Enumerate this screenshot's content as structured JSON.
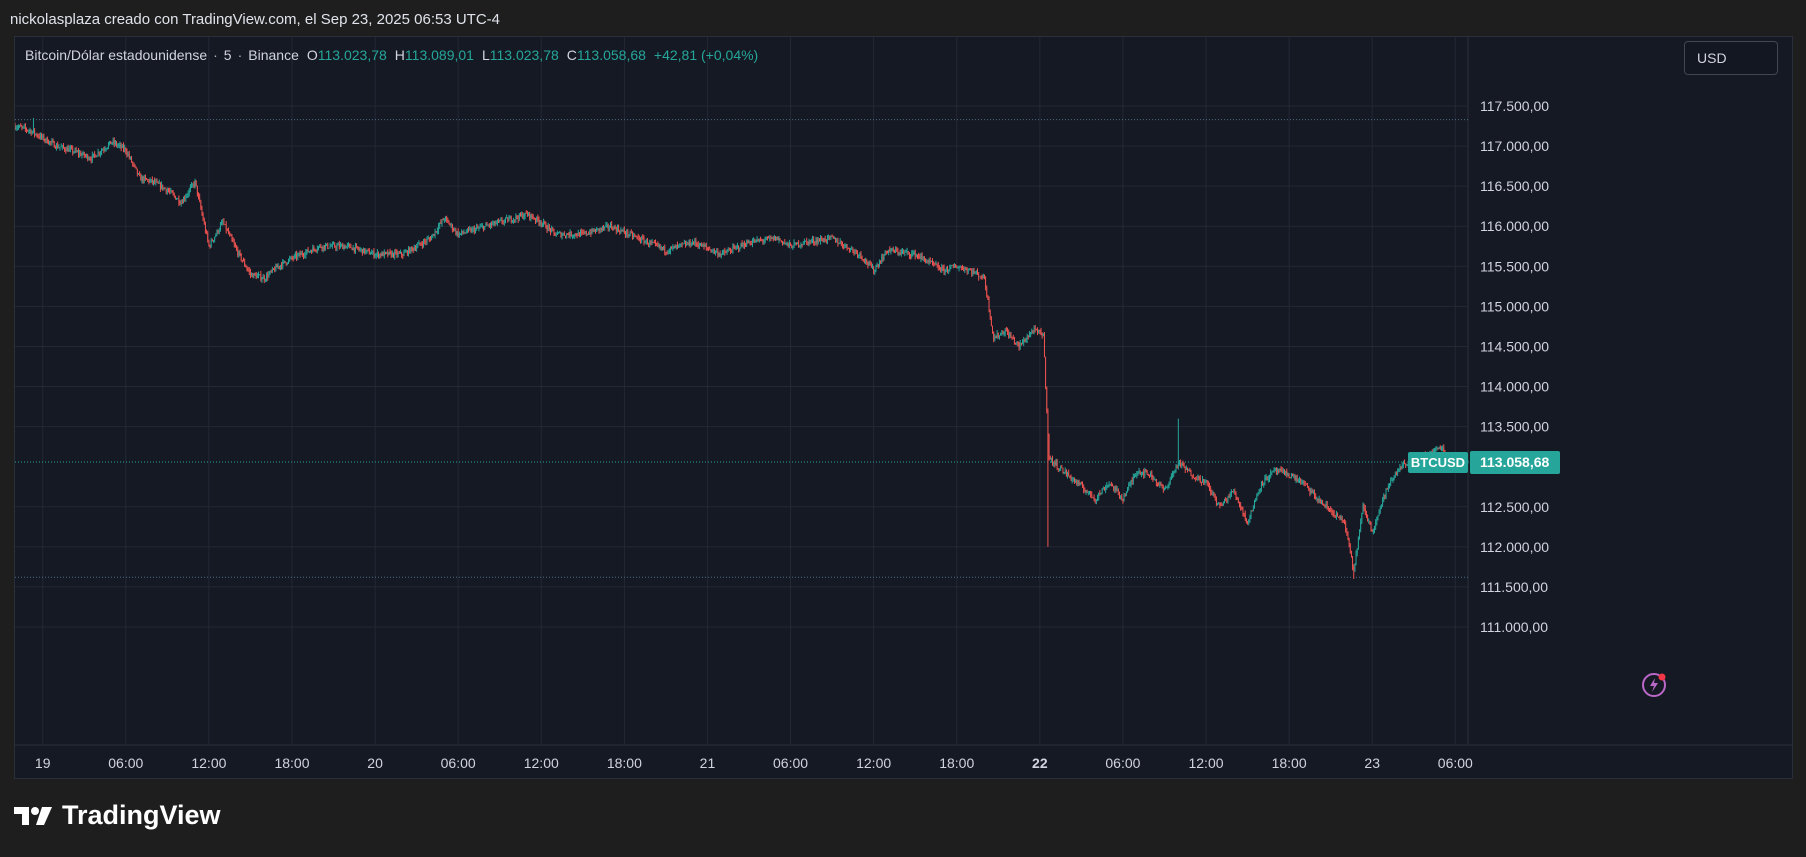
{
  "caption": "nickolasplaza creado con TradingView.com, el Sep 23, 2025 06:53 UTC-4",
  "legend": {
    "symbol": "Bitcoin/Dólar estadounidense",
    "interval": "5",
    "exchange": "Binance",
    "open_label": "O",
    "open": "113.023,78",
    "high_label": "H",
    "high": "113.089,01",
    "low_label": "L",
    "low": "113.023,78",
    "close_label": "C",
    "close": "113.058,68",
    "change": "+42,81 (+0,04%)"
  },
  "currency": "USD",
  "footer": {
    "brand": "TradingView"
  },
  "colors": {
    "up": "#26a69a",
    "down": "#ef5350",
    "bg": "#151924",
    "grid": "#232835"
  },
  "icons": [
    "tradingview-logo-icon",
    "lightning-alert-icon"
  ],
  "chart_data": {
    "type": "candlestick",
    "symbol": "BTCUSD",
    "interval_minutes": 5,
    "x_range": [
      "2025-09-18 22:00",
      "2025-09-23 06:55"
    ],
    "ylim": [
      110700,
      118300
    ],
    "y_ticks": [
      {
        "value": 117500,
        "label": "117.500,00"
      },
      {
        "value": 117000,
        "label": "117.000,00"
      },
      {
        "value": 116500,
        "label": "116.500,00"
      },
      {
        "value": 116000,
        "label": "116.000,00"
      },
      {
        "value": 115500,
        "label": "115.500,00"
      },
      {
        "value": 115000,
        "label": "115.000,00"
      },
      {
        "value": 114500,
        "label": "114.500,00"
      },
      {
        "value": 114000,
        "label": "114.000,00"
      },
      {
        "value": 113500,
        "label": "113.500,00"
      },
      {
        "value": 112500,
        "label": "112.500,00"
      },
      {
        "value": 112000,
        "label": "112.000,00"
      },
      {
        "value": 111500,
        "label": "111.500,00"
      },
      {
        "value": 111000,
        "label": "111.000,00"
      }
    ],
    "x_ticks": [
      {
        "time": "2025-09-19 00:00",
        "label": "19",
        "bold": false
      },
      {
        "time": "2025-09-19 06:00",
        "label": "06:00",
        "bold": false
      },
      {
        "time": "2025-09-19 12:00",
        "label": "12:00",
        "bold": false
      },
      {
        "time": "2025-09-19 18:00",
        "label": "18:00",
        "bold": false
      },
      {
        "time": "2025-09-20 00:00",
        "label": "20",
        "bold": false
      },
      {
        "time": "2025-09-20 06:00",
        "label": "06:00",
        "bold": false
      },
      {
        "time": "2025-09-20 12:00",
        "label": "12:00",
        "bold": false
      },
      {
        "time": "2025-09-20 18:00",
        "label": "18:00",
        "bold": false
      },
      {
        "time": "2025-09-21 00:00",
        "label": "21",
        "bold": false
      },
      {
        "time": "2025-09-21 06:00",
        "label": "06:00",
        "bold": false
      },
      {
        "time": "2025-09-21 12:00",
        "label": "12:00",
        "bold": false
      },
      {
        "time": "2025-09-21 18:00",
        "label": "18:00",
        "bold": false
      },
      {
        "time": "2025-09-22 00:00",
        "label": "22",
        "bold": true
      },
      {
        "time": "2025-09-22 06:00",
        "label": "06:00",
        "bold": false
      },
      {
        "time": "2025-09-22 12:00",
        "label": "12:00",
        "bold": false
      },
      {
        "time": "2025-09-22 18:00",
        "label": "18:00",
        "bold": false
      },
      {
        "time": "2025-09-23 00:00",
        "label": "23",
        "bold": false
      },
      {
        "time": "2025-09-23 06:00",
        "label": "06:00",
        "bold": false
      }
    ],
    "price_path": [
      [
        "2025-09-18 22:00",
        117250
      ],
      [
        "2025-09-18 23:00",
        117200
      ],
      [
        "2025-09-19 01:00",
        117000
      ],
      [
        "2025-09-19 02:00",
        116950
      ],
      [
        "2025-09-19 03:30",
        116850
      ],
      [
        "2025-09-19 05:00",
        117050
      ],
      [
        "2025-09-19 06:00",
        116950
      ],
      [
        "2025-09-19 07:00",
        116600
      ],
      [
        "2025-09-19 08:00",
        116550
      ],
      [
        "2025-09-19 09:00",
        116450
      ],
      [
        "2025-09-19 10:00",
        116300
      ],
      [
        "2025-09-19 11:00",
        116550
      ],
      [
        "2025-09-19 12:00",
        115750
      ],
      [
        "2025-09-19 13:00",
        116050
      ],
      [
        "2025-09-19 14:00",
        115700
      ],
      [
        "2025-09-19 15:00",
        115400
      ],
      [
        "2025-09-19 16:00",
        115350
      ],
      [
        "2025-09-19 17:00",
        115500
      ],
      [
        "2025-09-19 18:00",
        115600
      ],
      [
        "2025-09-19 20:00",
        115750
      ],
      [
        "2025-09-19 22:00",
        115750
      ],
      [
        "2025-09-20 00:00",
        115650
      ],
      [
        "2025-09-20 02:00",
        115650
      ],
      [
        "2025-09-20 04:00",
        115850
      ],
      [
        "2025-09-20 05:00",
        116100
      ],
      [
        "2025-09-20 06:00",
        115900
      ],
      [
        "2025-09-20 07:00",
        115950
      ],
      [
        "2025-09-20 09:00",
        116050
      ],
      [
        "2025-09-20 11:00",
        116150
      ],
      [
        "2025-09-20 12:00",
        116050
      ],
      [
        "2025-09-20 13:00",
        115900
      ],
      [
        "2025-09-20 15:00",
        115900
      ],
      [
        "2025-09-20 17:00",
        116000
      ],
      [
        "2025-09-20 19:00",
        115850
      ],
      [
        "2025-09-20 21:00",
        115700
      ],
      [
        "2025-09-20 23:00",
        115800
      ],
      [
        "2025-09-21 01:00",
        115650
      ],
      [
        "2025-09-21 03:00",
        115800
      ],
      [
        "2025-09-21 05:00",
        115850
      ],
      [
        "2025-09-21 06:00",
        115750
      ],
      [
        "2025-09-21 07:00",
        115800
      ],
      [
        "2025-09-21 09:00",
        115850
      ],
      [
        "2025-09-21 11:00",
        115650
      ],
      [
        "2025-09-21 12:00",
        115450
      ],
      [
        "2025-09-21 13:00",
        115700
      ],
      [
        "2025-09-21 15:00",
        115650
      ],
      [
        "2025-09-21 17:00",
        115450
      ],
      [
        "2025-09-21 18:00",
        115500
      ],
      [
        "2025-09-21 19:00",
        115450
      ],
      [
        "2025-09-21 20:00",
        115350
      ],
      [
        "2025-09-21 20:40",
        114600
      ],
      [
        "2025-09-21 21:30",
        114700
      ],
      [
        "2025-09-21 22:30",
        114500
      ],
      [
        "2025-09-21 23:30",
        114700
      ],
      [
        "2025-09-22 00:15",
        114650
      ],
      [
        "2025-09-22 00:40",
        113100
      ],
      [
        "2025-09-22 02:00",
        112900
      ],
      [
        "2025-09-22 04:00",
        112600
      ],
      [
        "2025-09-22 05:00",
        112800
      ],
      [
        "2025-09-22 06:00",
        112600
      ],
      [
        "2025-09-22 07:00",
        112950
      ],
      [
        "2025-09-22 08:00",
        112900
      ],
      [
        "2025-09-22 09:00",
        112700
      ],
      [
        "2025-09-22 10:00",
        113050
      ],
      [
        "2025-09-22 11:00",
        112900
      ],
      [
        "2025-09-22 12:00",
        112800
      ],
      [
        "2025-09-22 13:00",
        112500
      ],
      [
        "2025-09-22 14:00",
        112700
      ],
      [
        "2025-09-22 15:00",
        112300
      ],
      [
        "2025-09-22 16:00",
        112800
      ],
      [
        "2025-09-22 17:00",
        112950
      ],
      [
        "2025-09-22 18:00",
        112900
      ],
      [
        "2025-09-22 19:00",
        112800
      ],
      [
        "2025-09-22 20:00",
        112600
      ],
      [
        "2025-09-22 21:00",
        112450
      ],
      [
        "2025-09-22 22:00",
        112300
      ],
      [
        "2025-09-22 22:40",
        111700
      ],
      [
        "2025-09-22 23:20",
        112500
      ],
      [
        "2025-09-23 00:00",
        112200
      ],
      [
        "2025-09-23 01:00",
        112700
      ],
      [
        "2025-09-23 02:00",
        113000
      ],
      [
        "2025-09-23 03:00",
        113100
      ],
      [
        "2025-09-23 04:00",
        113150
      ],
      [
        "2025-09-23 05:00",
        113250
      ],
      [
        "2025-09-23 05:30",
        113100
      ],
      [
        "2025-09-23 06:55",
        113058.68
      ]
    ],
    "extremes": [
      {
        "time": "2025-09-18 23:20",
        "high": 117350
      },
      {
        "time": "2025-09-22 00:35",
        "low": 112000
      },
      {
        "time": "2025-09-22 10:00",
        "high": 113600
      },
      {
        "time": "2025-09-22 22:40",
        "low": 111600
      }
    ],
    "reference_lines": [
      {
        "value": 117330,
        "style": "dotted",
        "color": "#4f6c85"
      },
      {
        "value": 111620,
        "style": "dotted",
        "color": "#4f6c85"
      },
      {
        "value": 113058.68,
        "style": "dotted",
        "color": "#26a69a"
      }
    ],
    "last_price": {
      "value": 113058.68,
      "label": "113.058,68",
      "symbol_label": "BTCUSD"
    },
    "grid": true,
    "price_axis": "right"
  }
}
